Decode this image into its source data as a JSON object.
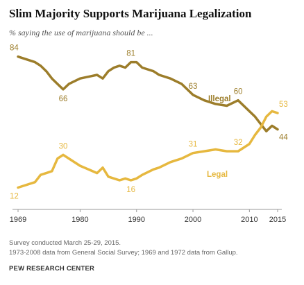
{
  "title": "Slim Majority Supports Marijuana Legalization",
  "subtitle": "% saying the use of marijuana should be ...",
  "notes": [
    "Survey conducted March 25-29, 2015.",
    "1973-2008 data from General Social Survey; 1969 and 1972 data from Gallup."
  ],
  "source": "PEW RESEARCH CENTER",
  "colors": {
    "illegal": "#9c7d2a",
    "legal": "#e6b83f",
    "axis": "#999999",
    "tick_text": "#333333"
  },
  "chart_data": {
    "type": "line",
    "xlabel": "",
    "ylabel": "",
    "xlim": [
      1969,
      2015
    ],
    "ylim": [
      0,
      90
    ],
    "x_ticks": [
      1969,
      1980,
      1990,
      2000,
      2010,
      2015
    ],
    "grid": false,
    "legend": "inline labels next to lines",
    "series": [
      {
        "name": "Illegal",
        "points": [
          [
            1969,
            84
          ],
          [
            1972,
            81
          ],
          [
            1973,
            79
          ],
          [
            1974,
            76
          ],
          [
            1975,
            72
          ],
          [
            1976,
            69
          ],
          [
            1977,
            66
          ],
          [
            1978,
            69
          ],
          [
            1980,
            72
          ],
          [
            1983,
            74
          ],
          [
            1984,
            72
          ],
          [
            1985,
            76
          ],
          [
            1986,
            78
          ],
          [
            1987,
            79
          ],
          [
            1988,
            78
          ],
          [
            1989,
            81
          ],
          [
            1990,
            81
          ],
          [
            1991,
            78
          ],
          [
            1993,
            76
          ],
          [
            1994,
            74
          ],
          [
            1996,
            72
          ],
          [
            1998,
            69
          ],
          [
            2000,
            63
          ],
          [
            2002,
            60
          ],
          [
            2004,
            58
          ],
          [
            2006,
            57
          ],
          [
            2008,
            60
          ],
          [
            2010,
            54
          ],
          [
            2011,
            51
          ],
          [
            2012,
            47
          ],
          [
            2013,
            43
          ],
          [
            2014,
            46
          ],
          [
            2015,
            44
          ]
        ],
        "labeled_values": [
          {
            "x": 1969,
            "y": 84,
            "label": "84"
          },
          {
            "x": 1977,
            "y": 66,
            "label": "66"
          },
          {
            "x": 1989,
            "y": 81,
            "label": "81"
          },
          {
            "x": 2000,
            "y": 63,
            "label": "63"
          },
          {
            "x": 2008,
            "y": 60,
            "label": "60"
          },
          {
            "x": 2015,
            "y": 44,
            "label": "44"
          }
        ]
      },
      {
        "name": "Legal",
        "points": [
          [
            1969,
            12
          ],
          [
            1972,
            15
          ],
          [
            1973,
            19
          ],
          [
            1974,
            20
          ],
          [
            1975,
            21
          ],
          [
            1976,
            28
          ],
          [
            1977,
            30
          ],
          [
            1978,
            28
          ],
          [
            1980,
            24
          ],
          [
            1983,
            20
          ],
          [
            1984,
            23
          ],
          [
            1985,
            18
          ],
          [
            1986,
            17
          ],
          [
            1987,
            16
          ],
          [
            1988,
            17
          ],
          [
            1989,
            16
          ],
          [
            1990,
            17
          ],
          [
            1991,
            19
          ],
          [
            1993,
            22
          ],
          [
            1994,
            23
          ],
          [
            1996,
            26
          ],
          [
            1998,
            28
          ],
          [
            2000,
            31
          ],
          [
            2002,
            32
          ],
          [
            2004,
            33
          ],
          [
            2006,
            32
          ],
          [
            2008,
            32
          ],
          [
            2010,
            36
          ],
          [
            2011,
            41
          ],
          [
            2012,
            45
          ],
          [
            2013,
            51
          ],
          [
            2014,
            54
          ],
          [
            2015,
            53
          ]
        ],
        "labeled_values": [
          {
            "x": 1969,
            "y": 12,
            "label": "12"
          },
          {
            "x": 1977,
            "y": 30,
            "label": "30"
          },
          {
            "x": 1989,
            "y": 16,
            "label": "16"
          },
          {
            "x": 2000,
            "y": 31,
            "label": "31"
          },
          {
            "x": 2008,
            "y": 32,
            "label": "32"
          },
          {
            "x": 2015,
            "y": 53,
            "label": "53"
          }
        ]
      }
    ]
  }
}
